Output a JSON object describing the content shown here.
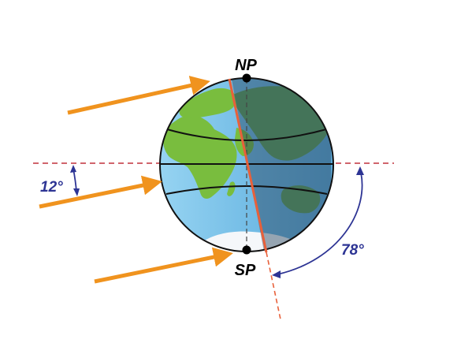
{
  "labels": {
    "north_pole": "NP",
    "south_pole": "SP",
    "tilt_angle": "12°",
    "complement_angle": "78°"
  },
  "colors": {
    "sun_ray": "#f0931e",
    "axis": "#e8603a",
    "ecliptic": "#c0303c",
    "angle_marker": "#2d3494",
    "ocean_lit": "#8ccff0",
    "ocean_dark": "#4a7a98",
    "land_lit": "#79bd3e",
    "land_dark": "#3f7f4e",
    "outline": "#111111"
  },
  "icons": [
    "sun-ray-arrow",
    "globe",
    "pole-dot"
  ]
}
